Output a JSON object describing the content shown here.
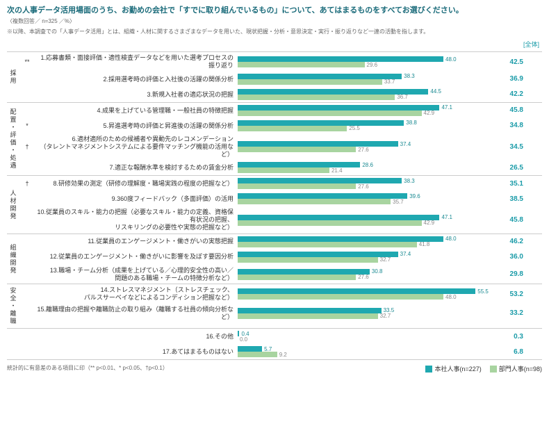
{
  "title": "次の人事データ活用場面のうち、お勤めの会社で「すでに取り組んでいるもの」について、あてはまるものをすべてお選びください。",
  "subtitle": "〈複数回答／ n=325 ／%〉",
  "note": "※以降、本調査での「人事データ活用」とは、組織・人材に関するさまざまなデータを用いた、現状把握・分析・意思決定・実行・振り返りなど一連の活動を指します。",
  "overall_label": "[全体]",
  "footnote": "統計的に有意差のある項目に印（** p<0.01、* p<0.05、†p<0.1）",
  "colors": {
    "series1": "#1fa8b0",
    "series2": "#a8d4a0",
    "series1_text": "#1a8a92",
    "series2_text": "#888",
    "overall": "#1a9ba8"
  },
  "legend": {
    "s1": "本社人事(n=227)",
    "s2": "部門人事(n=98)"
  },
  "bar_max": 60,
  "groups": [
    {
      "category": "採用",
      "items": [
        {
          "sig": "**",
          "label": "1.応募書類・面接評価・適性検査データなどを用いた選考プロセスの振り返り",
          "v1": 48.0,
          "v2": 29.6,
          "overall": 42.5
        },
        {
          "sig": "",
          "label": "2.採用選考時の評価と入社後の活躍の関係分析",
          "v1": 38.3,
          "v2": 33.7,
          "overall": 36.9
        },
        {
          "sig": "",
          "label": "3.新規入社者の適応状況の把握",
          "v1": 44.5,
          "v2": 36.7,
          "overall": 42.2
        }
      ]
    },
    {
      "category": "配置・評価・処遇",
      "items": [
        {
          "sig": "",
          "label": "4.成果を上げている管理職・一般社員の特徴把握",
          "v1": 47.1,
          "v2": 42.9,
          "overall": 45.8
        },
        {
          "sig": "*",
          "label": "5.昇進選考時の評価と昇進後の活躍の関係分析",
          "v1": 38.8,
          "v2": 25.5,
          "overall": 34.8
        },
        {
          "sig": "†",
          "label": "6.適材適所のための候補者や異動先のレコメンデーション\n（タレントマネジメントシステムによる要件マッチング機能の活用など）",
          "v1": 37.4,
          "v2": 27.6,
          "overall": 34.5
        },
        {
          "sig": "",
          "label": "7.適正な報酬水準を検討するための賃金分析",
          "v1": 28.6,
          "v2": 21.4,
          "overall": 26.5
        }
      ]
    },
    {
      "category": "人材開発",
      "items": [
        {
          "sig": "†",
          "label": "8.研修効果の測定（研修の理解度・職場実践の程度の把握など）",
          "v1": 38.3,
          "v2": 27.6,
          "overall": 35.1
        },
        {
          "sig": "",
          "label": "9.360度フィードバック（多面評価）の活用",
          "v1": 39.6,
          "v2": 35.7,
          "overall": 38.5
        },
        {
          "sig": "",
          "label": "10.従業員のスキル・能力の把握（必要なスキル・能力の定義、資格保有状況の把握、\nリスキリングの必要性や実態の把握など）",
          "v1": 47.1,
          "v2": 42.9,
          "overall": 45.8
        }
      ]
    },
    {
      "category": "組織開発",
      "items": [
        {
          "sig": "",
          "label": "11.従業員のエンゲージメント・働きがいの実態把握",
          "v1": 48.0,
          "v2": 41.8,
          "overall": 46.2
        },
        {
          "sig": "",
          "label": "12.従業員のエンゲージメント・働きがいに影響を及ぼす要因分析",
          "v1": 37.4,
          "v2": 32.7,
          "overall": 36.0
        },
        {
          "sig": "",
          "label": "13.職場・チーム分析（成果を上げている／心理的安全性の高い／\n問題のある職場・チームの特徴分析など）",
          "v1": 30.8,
          "v2": 27.6,
          "overall": 29.8
        }
      ]
    },
    {
      "category": "安全・離職",
      "items": [
        {
          "sig": "",
          "label": "14.ストレスマネジメント（ストレスチェック、\nパルスサーベイなどによるコンディション把握など）",
          "v1": 55.5,
          "v2": 48.0,
          "overall": 53.2
        },
        {
          "sig": "",
          "label": "15.離職理由の把握や離職防止の取り組み（離職する社員の傾向分析など）",
          "v1": 33.5,
          "v2": 32.7,
          "overall": 33.2
        }
      ]
    },
    {
      "category": "",
      "items": [
        {
          "sig": "",
          "label": "16.その他",
          "v1": 0.4,
          "v2": 0.0,
          "overall": 0.3
        },
        {
          "sig": "",
          "label": "17.あてはまるものはない",
          "v1": 5.7,
          "v2": 9.2,
          "overall": 6.8
        }
      ]
    }
  ]
}
